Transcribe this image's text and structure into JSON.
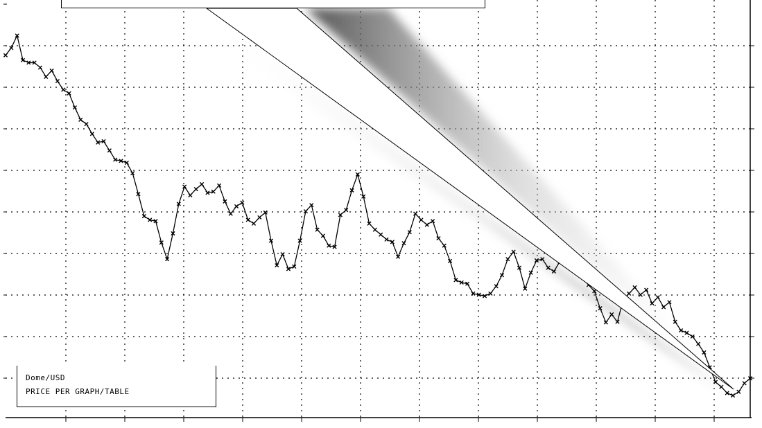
{
  "chart_data": {
    "type": "line",
    "title": "",
    "xlabel": "",
    "ylabel": "",
    "grid": true,
    "legend": "bottom-left",
    "legend_lines": [
      "Dome/USD",
      "PRICE PER GRAPH/TABLE"
    ],
    "marker": "x",
    "x": [
      0,
      1,
      2,
      3,
      4,
      5,
      6,
      7,
      8,
      9,
      10,
      11,
      12,
      13,
      14,
      15,
      16,
      17,
      18,
      19,
      20,
      21,
      22,
      23,
      24,
      25,
      26,
      27,
      28,
      29,
      30,
      31,
      32,
      33,
      34,
      35,
      36,
      37,
      38,
      39,
      40,
      41,
      42,
      43,
      44,
      45,
      46,
      47,
      48,
      49,
      50,
      51,
      52,
      53,
      54,
      55,
      56,
      57,
      58,
      59,
      60,
      61,
      62,
      63,
      64,
      65,
      66,
      67,
      68,
      69,
      70,
      71,
      72,
      73,
      74,
      75,
      76,
      77,
      78,
      79,
      80,
      81,
      82,
      83,
      84,
      85,
      86,
      87,
      88,
      89,
      90,
      91,
      92,
      93,
      94,
      95,
      96,
      97,
      98,
      99,
      100,
      101,
      102,
      103,
      104,
      105,
      106,
      107,
      108,
      109,
      110,
      111,
      112,
      113,
      114,
      115,
      116,
      117,
      118,
      119,
      120,
      121,
      122,
      123,
      124,
      125,
      126,
      127,
      128,
      129
    ],
    "series": [
      {
        "values": [
          590,
          602,
          622,
          582,
          578,
          578,
          570,
          555,
          565,
          548,
          534,
          528,
          505,
          485,
          478,
          462,
          448,
          450,
          435,
          420,
          418,
          415,
          398,
          364,
          328,
          322,
          320,
          285,
          258,
          300,
          348,
          376,
          362,
          372,
          380,
          366,
          368,
          378,
          352,
          332,
          344,
          350,
          322,
          316,
          326,
          334,
          288,
          248,
          266,
          242,
          246,
          288,
          336,
          346,
          306,
          296,
          280,
          278,
          330,
          338,
          370,
          396,
          360,
          316,
          306,
          298,
          290,
          286,
          262,
          284,
          302,
          332,
          322,
          314,
          320,
          292,
          280,
          255,
          224,
          220,
          218,
          202,
          200,
          198,
          202,
          214,
          232,
          258,
          270,
          244,
          210,
          236,
          256,
          258,
          244,
          238,
          254,
          262,
          252,
          254,
          232,
          216,
          206,
          178,
          155,
          168,
          156,
          192,
          202,
          212,
          200,
          208,
          186,
          196,
          180,
          188,
          156,
          142,
          138,
          132,
          120,
          106,
          82,
          58,
          50,
          40,
          36,
          42,
          56,
          64
        ],
        "line_color": "#000000"
      }
    ],
    "xlim": [
      0,
      129
    ],
    "ylim": [
      0,
      680
    ]
  }
}
